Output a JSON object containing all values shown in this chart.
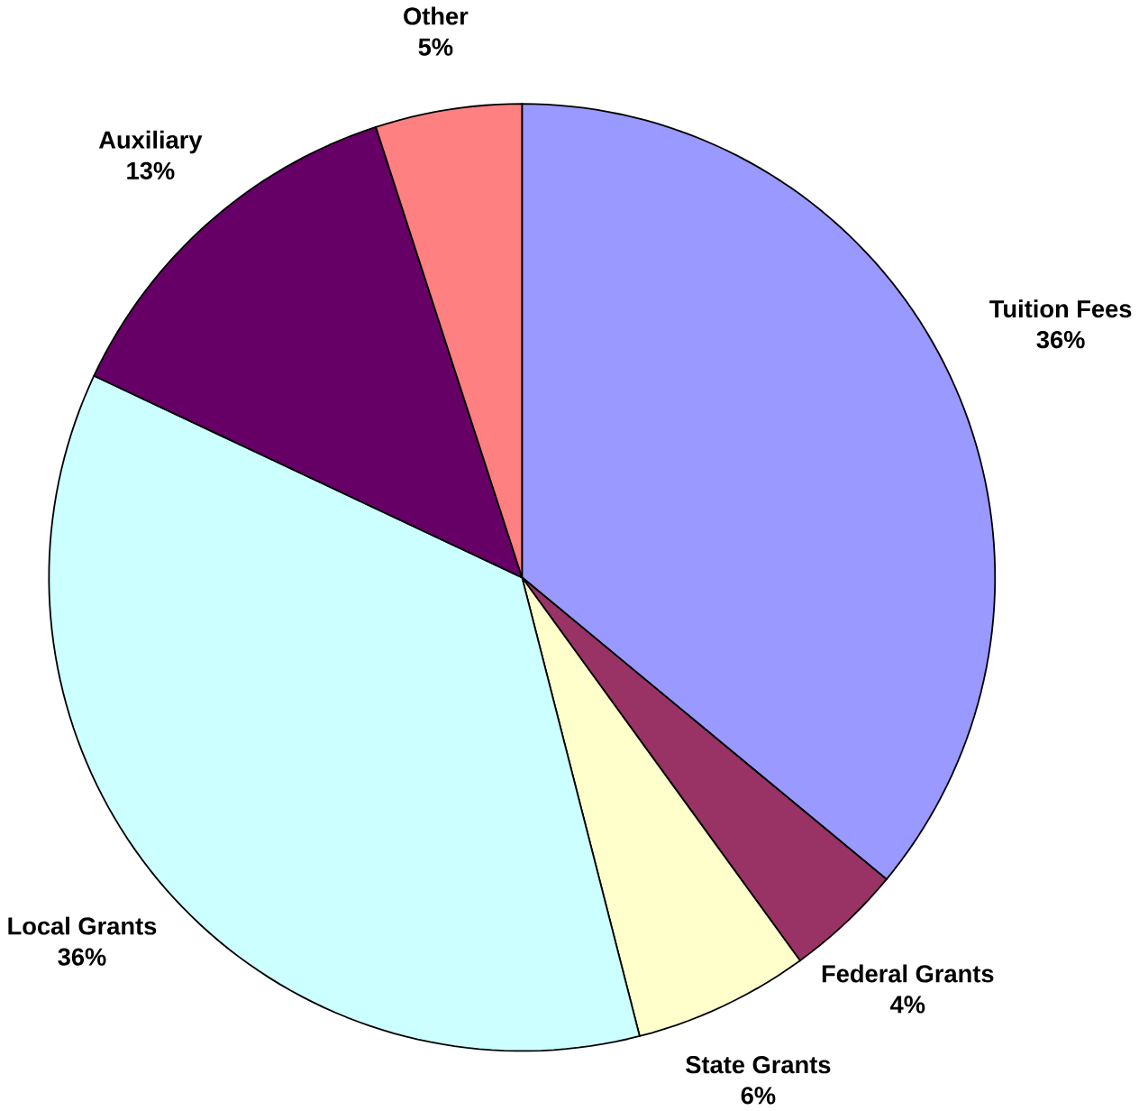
{
  "chart_data": {
    "type": "pie",
    "categories": [
      "Tuition Fees",
      "Federal Grants",
      "State Grants",
      "Local Grants",
      "Auxiliary",
      "Other"
    ],
    "values": [
      36,
      4,
      6,
      36,
      13,
      5
    ],
    "value_labels": [
      "36%",
      "4%",
      "6%",
      "36%",
      "13%",
      "5%"
    ],
    "colors": [
      "#9999ff",
      "#993366",
      "#ffffcc",
      "#ccffff",
      "#660066",
      "#ff8080"
    ]
  }
}
